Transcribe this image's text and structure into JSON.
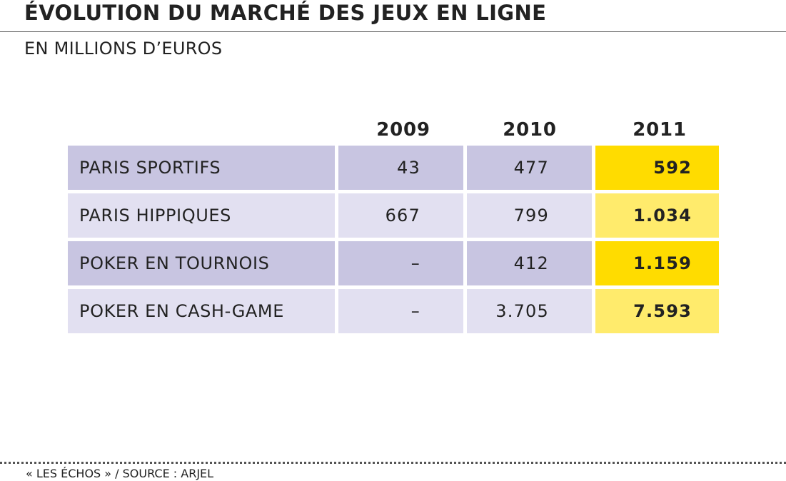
{
  "title": "ÉVOLUTION DU MARCHÉ DES JEUX EN LIGNE",
  "subtitle": "EN MILLIONS D’EUROS",
  "footer": "« LES ÉCHOS »  / SOURCE : ARJEL",
  "colors": {
    "row_dark": "#c8c5e1",
    "row_light": "#e2e0f1",
    "highlight_dark": "#ffdc00",
    "highlight_light": "#ffeb6c"
  },
  "chart_data": {
    "type": "table",
    "title": "ÉVOLUTION DU MARCHÉ DES JEUX EN LIGNE",
    "subtitle": "EN MILLIONS D’EUROS",
    "columns": [
      "2009",
      "2010",
      "2011"
    ],
    "rows": [
      {
        "label": "PARIS SPORTIFS",
        "cells": [
          "43",
          "477",
          "592"
        ]
      },
      {
        "label": "PARIS HIPPIQUES",
        "cells": [
          "667",
          "799",
          "1.034"
        ]
      },
      {
        "label": "POKER EN TOURNOIS",
        "cells": [
          "–",
          "412",
          "1.159"
        ]
      },
      {
        "label": "POKER EN CASH-GAME",
        "cells": [
          "–",
          "3.705",
          "7.593"
        ]
      }
    ],
    "values": [
      [
        43,
        477,
        592
      ],
      [
        667,
        799,
        1034
      ],
      [
        null,
        412,
        1159
      ],
      [
        null,
        3705,
        7593
      ]
    ],
    "highlighted_column": "2011",
    "source": "ARJEL"
  }
}
